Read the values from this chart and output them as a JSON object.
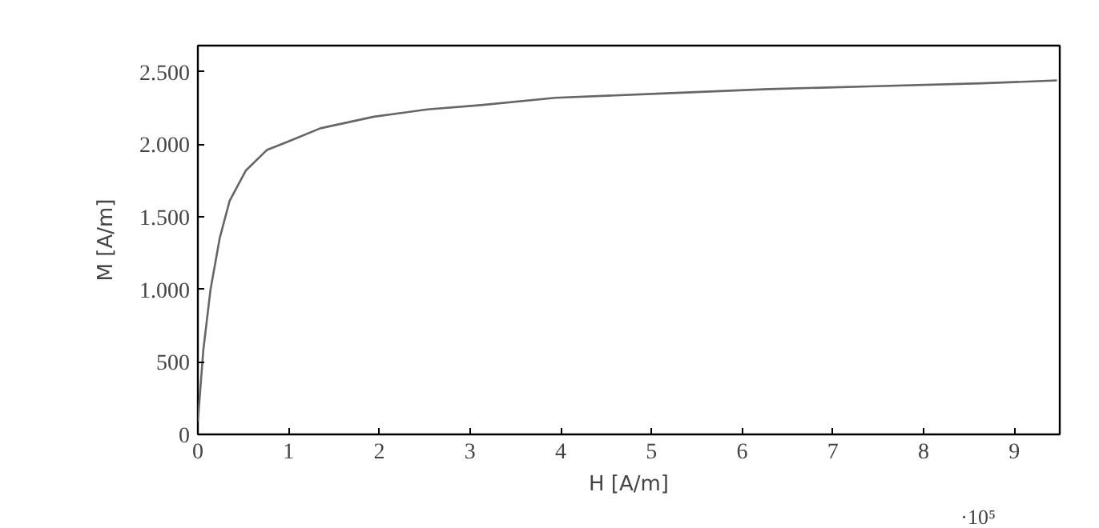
{
  "chart_data": {
    "type": "line",
    "xlabel": "H [A/m]",
    "ylabel": "M [A/m]",
    "annotations": [
      "·10⁵"
    ],
    "x": [
      0,
      0.06,
      0.14,
      0.24,
      0.35,
      0.53,
      0.76,
      1,
      1.35,
      1.94,
      2.53,
      3.12,
      3.94,
      5.11,
      6.29,
      7.47,
      8.64,
      9.47
    ],
    "series": [
      {
        "color": "#666666",
        "values": [
          90,
          580,
          1000,
          1350,
          1610,
          1820,
          1960,
          2020,
          2110,
          2190,
          2240,
          2270,
          2320,
          2350,
          2380,
          2400,
          2420,
          2440
        ]
      }
    ],
    "xlim": [
      0,
      9.5
    ],
    "ylim": [
      0,
      2680
    ],
    "xticks": [
      0,
      1,
      2,
      3,
      4,
      5,
      6,
      7,
      8,
      9
    ],
    "yticks": [
      0,
      {
        "value": 500,
        "label": "500"
      },
      {
        "value": 1000,
        "label": "1.000"
      },
      {
        "value": 1500,
        "label": "1.500"
      },
      {
        "value": 2000,
        "label": "2.000"
      },
      {
        "value": 2500,
        "label": "2.500"
      }
    ],
    "grid": false,
    "marker": "none",
    "line_style": "solid"
  }
}
